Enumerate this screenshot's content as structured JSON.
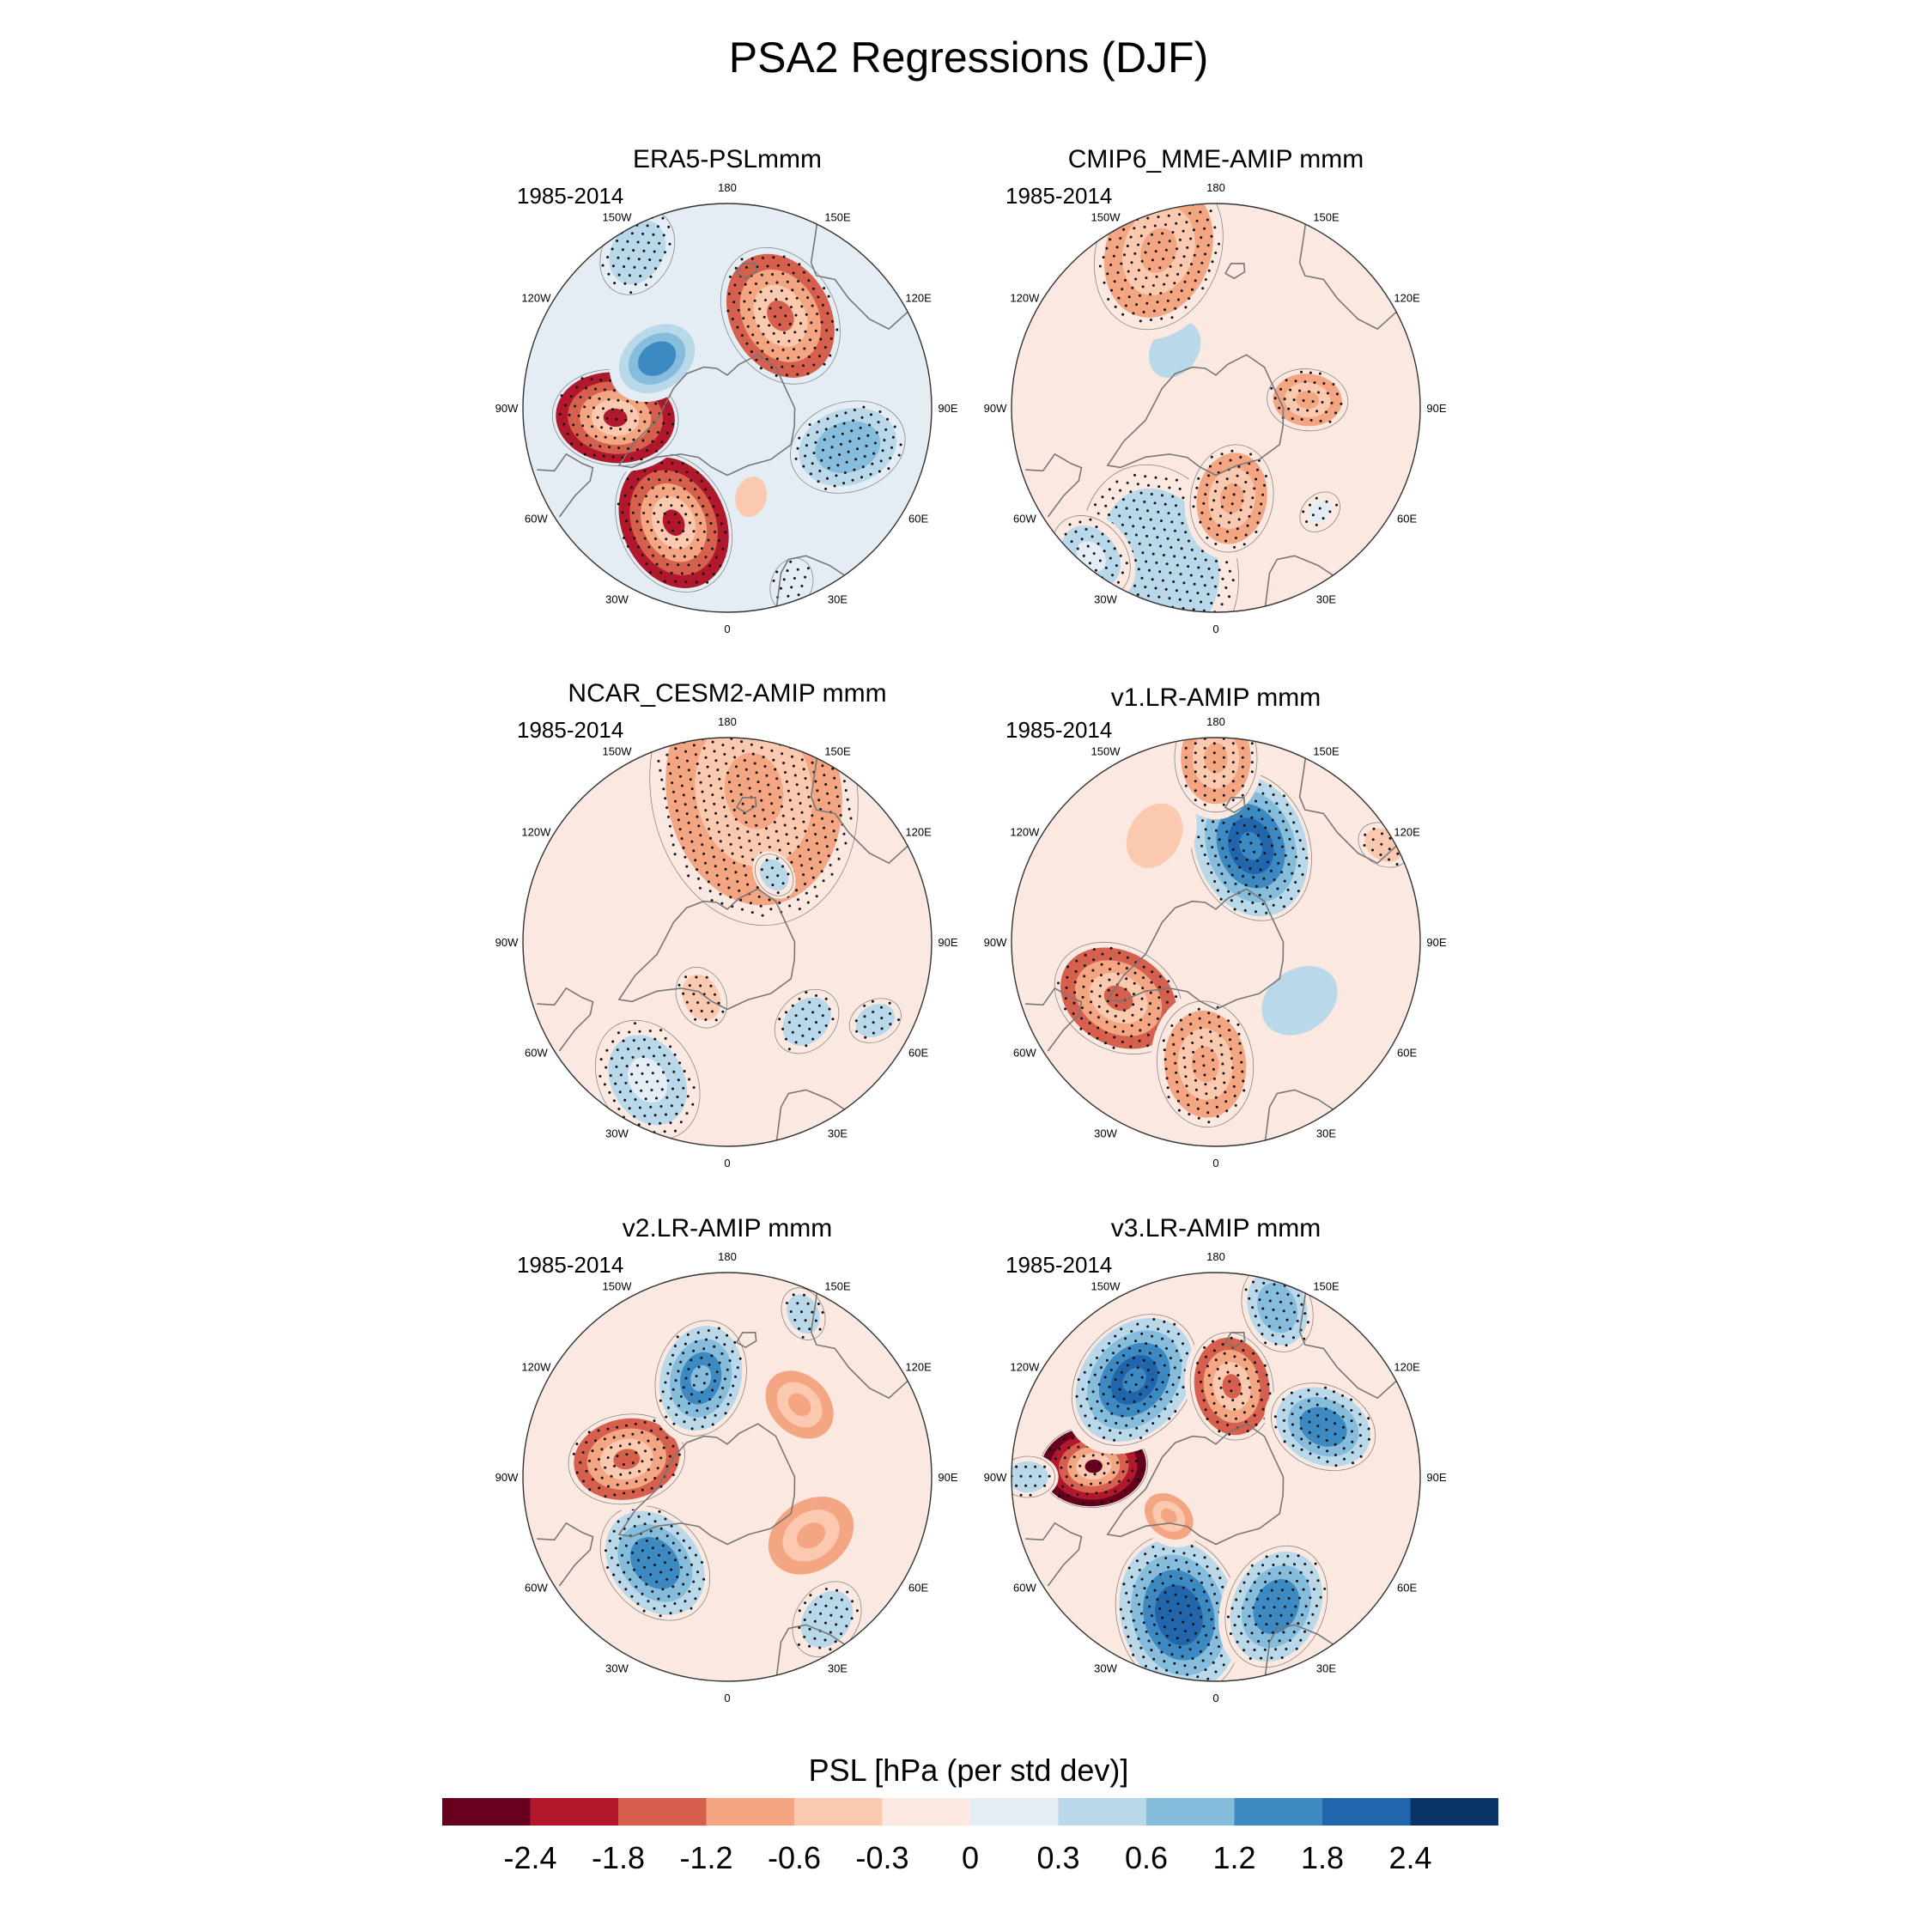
{
  "title": "PSA2 Regressions (DJF)",
  "colors": {
    "levels": [
      "#67001f",
      "#b2182b",
      "#d6604d",
      "#f4a582",
      "#fbc9b0",
      "#fbe9e1",
      "#e4edf4",
      "#b9d8ea",
      "#86bcdc",
      "#3d8ac3",
      "#2166ac",
      "#0b3566"
    ],
    "neutral": "#eaf0f6"
  },
  "longitude_labels": [
    "0",
    "30E",
    "60E",
    "90E",
    "120E",
    "150E",
    "180",
    "150W",
    "120W",
    "90W",
    "60W",
    "30W"
  ],
  "panels": [
    {
      "title": "ERA5-PSLmmm",
      "period": "1985-2014",
      "base": 0.1,
      "anomalies": [
        {
          "lon": -25,
          "r": 0.62,
          "value": -2.0,
          "size": 0.16,
          "stipple": true
        },
        {
          "lon": -85,
          "r": 0.55,
          "value": -1.9,
          "size": 0.14,
          "stipple": true
        },
        {
          "lon": -125,
          "r": 0.42,
          "value": 1.4,
          "size": 0.1,
          "stipple": false
        },
        {
          "lon": 150,
          "r": 0.52,
          "value": -1.6,
          "size": 0.16,
          "stipple": true
        },
        {
          "lon": 72,
          "r": 0.62,
          "value": 1.0,
          "size": 0.13,
          "stipple": true
        },
        {
          "lon": 15,
          "r": 0.45,
          "value": -0.5,
          "size": 0.06,
          "stipple": false
        },
        {
          "lon": -150,
          "r": 0.88,
          "value": 0.5,
          "size": 0.1,
          "stipple": true
        },
        {
          "lon": 20,
          "r": 0.92,
          "value": 0.2,
          "size": 0.06,
          "stipple": true
        }
      ]
    },
    {
      "title": "CMIP6_MME-AMIP  mmm",
      "period": "1985-2014",
      "base": -0.15,
      "anomalies": [
        {
          "lon": -20,
          "r": 0.8,
          "value": 0.35,
          "size": 0.22,
          "stipple": true
        },
        {
          "lon": -40,
          "r": 0.95,
          "value": 0.3,
          "size": 0.1,
          "stipple": true
        },
        {
          "lon": 10,
          "r": 0.45,
          "value": -0.6,
          "size": 0.12,
          "stipple": true
        },
        {
          "lon": 95,
          "r": 0.45,
          "value": -0.6,
          "size": 0.09,
          "stipple": true
        },
        {
          "lon": -145,
          "r": 0.35,
          "value": 0.5,
          "size": 0.09,
          "stipple": false
        },
        {
          "lon": -160,
          "r": 0.82,
          "value": -0.7,
          "size": 0.18,
          "stipple": true
        },
        {
          "lon": 45,
          "r": 0.72,
          "value": 0.25,
          "size": 0.05,
          "stipple": true
        }
      ]
    },
    {
      "title": "NCAR_CESM2-AMIP  mmm",
      "period": "1985-2014",
      "base": 0.0,
      "anomalies": [
        {
          "lon": -30,
          "r": 0.78,
          "value": 0.3,
          "size": 0.14,
          "stipple": true
        },
        {
          "lon": 170,
          "r": 0.75,
          "value": -1.1,
          "size": 0.3,
          "stipple": true
        },
        {
          "lon": 45,
          "r": 0.55,
          "value": 0.45,
          "size": 0.08,
          "stipple": true
        },
        {
          "lon": 62,
          "r": 0.82,
          "value": 0.5,
          "size": 0.06,
          "stipple": true
        },
        {
          "lon": -25,
          "r": 0.3,
          "value": -0.35,
          "size": 0.07,
          "stipple": true
        },
        {
          "lon": 145,
          "r": 0.4,
          "value": 0.4,
          "size": 0.05,
          "stipple": true
        }
      ]
    },
    {
      "title": "v1.LR-AMIP  mmm",
      "period": "1985-2014",
      "base": 0.0,
      "anomalies": [
        {
          "lon": -60,
          "r": 0.55,
          "value": -1.5,
          "size": 0.15,
          "stipple": true
        },
        {
          "lon": -5,
          "r": 0.6,
          "value": -1.0,
          "size": 0.14,
          "stipple": true
        },
        {
          "lon": 160,
          "r": 0.5,
          "value": 1.8,
          "size": 0.17,
          "stipple": true
        },
        {
          "lon": 55,
          "r": 0.5,
          "value": 0.5,
          "size": 0.12,
          "stipple": false
        },
        {
          "lon": -150,
          "r": 0.6,
          "value": -0.5,
          "size": 0.1,
          "stipple": false
        },
        {
          "lon": 180,
          "r": 0.9,
          "value": -0.6,
          "size": 0.12,
          "stipple": true
        },
        {
          "lon": 120,
          "r": 0.95,
          "value": -0.4,
          "size": 0.06,
          "stipple": true
        }
      ]
    },
    {
      "title": "v2.LR-AMIP  mmm",
      "period": "1985-2014",
      "base": -0.05,
      "anomalies": [
        {
          "lon": -40,
          "r": 0.55,
          "value": 1.4,
          "size": 0.14,
          "stipple": true
        },
        {
          "lon": -100,
          "r": 0.5,
          "value": -1.5,
          "size": 0.13,
          "stipple": true
        },
        {
          "lon": -165,
          "r": 0.5,
          "value": 1.2,
          "size": 0.13,
          "stipple": true
        },
        {
          "lon": 55,
          "r": 0.5,
          "value": -0.8,
          "size": 0.12,
          "stipple": false
        },
        {
          "lon": 135,
          "r": 0.5,
          "value": -0.6,
          "size": 0.1,
          "stipple": false
        },
        {
          "lon": 35,
          "r": 0.85,
          "value": 0.5,
          "size": 0.09,
          "stipple": true
        },
        {
          "lon": 155,
          "r": 0.88,
          "value": 0.4,
          "size": 0.06,
          "stipple": true
        }
      ]
    },
    {
      "title": "v3.LR-AMIP  mmm",
      "period": "1985-2014",
      "base": 0.0,
      "anomalies": [
        {
          "lon": -15,
          "r": 0.7,
          "value": 2.0,
          "size": 0.18,
          "stipple": true
        },
        {
          "lon": 25,
          "r": 0.7,
          "value": 1.3,
          "size": 0.14,
          "stipple": true
        },
        {
          "lon": -95,
          "r": 0.6,
          "value": -2.6,
          "size": 0.12,
          "stipple": true
        },
        {
          "lon": -140,
          "r": 0.62,
          "value": 1.8,
          "size": 0.16,
          "stipple": true
        },
        {
          "lon": 170,
          "r": 0.45,
          "value": -1.6,
          "size": 0.12,
          "stipple": true
        },
        {
          "lon": 115,
          "r": 0.58,
          "value": 1.5,
          "size": 0.12,
          "stipple": true
        },
        {
          "lon": 160,
          "r": 0.88,
          "value": 1.0,
          "size": 0.1,
          "stipple": true
        },
        {
          "lon": -90,
          "r": 0.92,
          "value": 0.4,
          "size": 0.06,
          "stipple": true
        },
        {
          "lon": -50,
          "r": 0.3,
          "value": -0.7,
          "size": 0.07,
          "stipple": false
        }
      ]
    }
  ],
  "colorbar": {
    "title": "PSL [hPa (per std dev)]",
    "labels": [
      "-2.4",
      "-1.8",
      "-1.2",
      "-0.6",
      "-0.3",
      "0",
      "0.3",
      "0.6",
      "1.2",
      "1.8",
      "2.4"
    ]
  }
}
